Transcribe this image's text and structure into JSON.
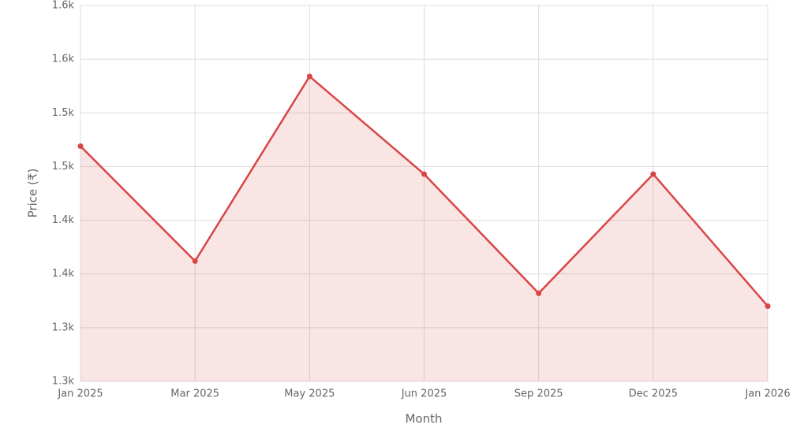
{
  "chart_data": {
    "type": "area",
    "x_label": "Month",
    "y_label": "Price (₹)",
    "categories": [
      "Jan 2025",
      "Mar 2025",
      "May 2025",
      "Jun 2025",
      "Sep 2025",
      "Dec 2025",
      "Jan 2026"
    ],
    "values": [
      1469,
      1362,
      1534,
      1443,
      1332,
      1443,
      1320
    ],
    "color": "#d94545",
    "ylim": [
      1250,
      1600
    ],
    "yticks": [
      {
        "value": 1250,
        "label": "1.3k"
      },
      {
        "value": 1300,
        "label": "1.3k"
      },
      {
        "value": 1350,
        "label": "1.4k"
      },
      {
        "value": 1400,
        "label": "1.4k"
      },
      {
        "value": 1450,
        "label": "1.5k"
      },
      {
        "value": 1500,
        "label": "1.5k"
      },
      {
        "value": 1550,
        "label": "1.6k"
      },
      {
        "value": 1600,
        "label": "1.6k"
      }
    ],
    "grid": true
  }
}
